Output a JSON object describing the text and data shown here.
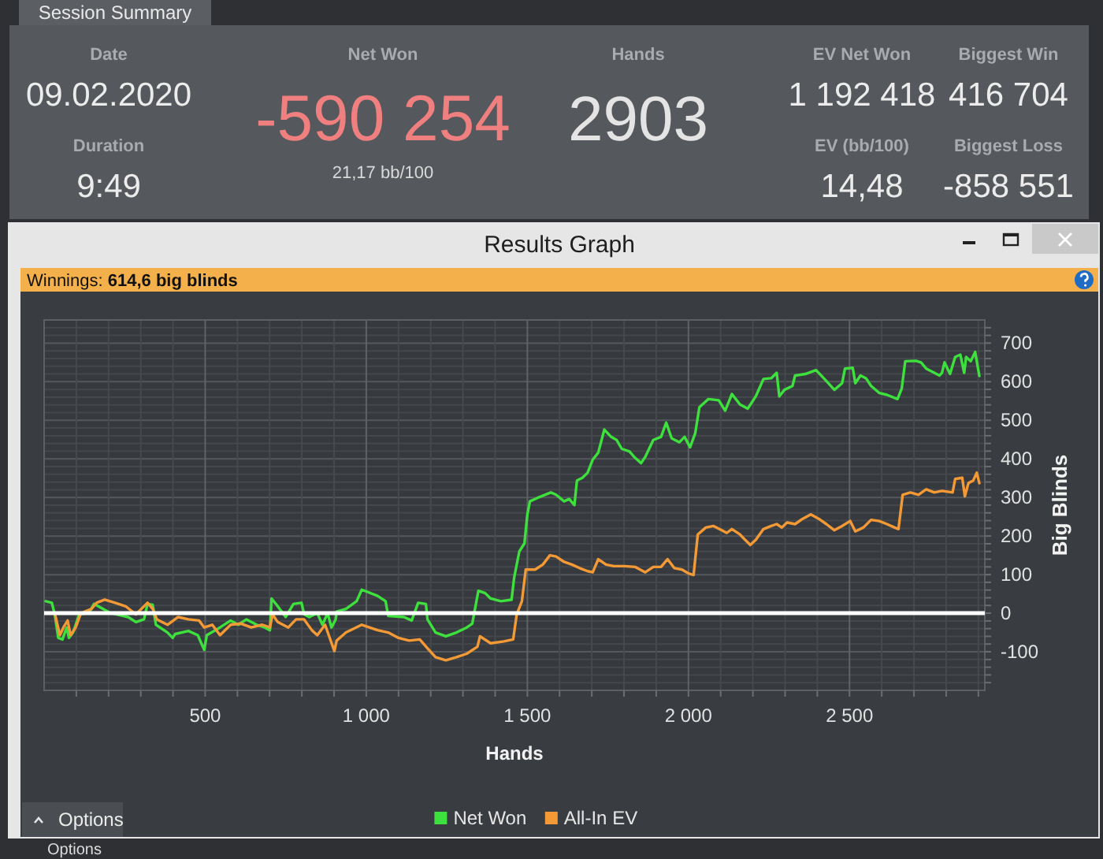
{
  "chart_data": [
    {
      "type": "other",
      "title": "Session Summary",
      "annotations": [
        "Date",
        "09.02.2020",
        "Duration",
        "9:49",
        "Net Won",
        "-590 254",
        "21,17 bb/100",
        "Hands",
        "2903",
        "EV Net Won",
        "1 192 418",
        "EV (bb/100)",
        "14,48",
        "Biggest Win",
        "416 704",
        "Biggest Loss",
        "-858 551"
      ]
    },
    {
      "type": "line",
      "title": "Results Graph",
      "annotations": [
        "Winnings: 614,6 big blinds",
        "Options",
        "Options"
      ],
      "xlabel": "Hands",
      "ylabel": "Big Blinds",
      "xlim": [
        0,
        2920
      ],
      "ylim": [
        -200,
        760
      ],
      "xticks": [
        {
          "value": 100,
          "label": null
        },
        {
          "value": 200,
          "label": null
        },
        {
          "value": 300,
          "label": null
        },
        {
          "value": 400,
          "label": null
        },
        500,
        {
          "value": 600,
          "label": null
        },
        {
          "value": 700,
          "label": null
        },
        {
          "value": 800,
          "label": null
        },
        {
          "value": 900,
          "label": null
        },
        {
          "value": 1000,
          "label": "1 000"
        },
        {
          "value": 1100,
          "label": null
        },
        {
          "value": 1200,
          "label": null
        },
        {
          "value": 1300,
          "label": null
        },
        {
          "value": 1400,
          "label": null
        },
        {
          "value": 1500,
          "label": "1 500"
        },
        {
          "value": 1600,
          "label": null
        },
        {
          "value": 1700,
          "label": null
        },
        {
          "value": 1800,
          "label": null
        },
        {
          "value": 1900,
          "label": null
        },
        {
          "value": 2000,
          "label": "2 000"
        },
        {
          "value": 2100,
          "label": null
        },
        {
          "value": 2200,
          "label": null
        },
        {
          "value": 2300,
          "label": null
        },
        {
          "value": 2400,
          "label": null
        },
        {
          "value": 2500,
          "label": "2 500"
        },
        {
          "value": 2600,
          "label": null
        },
        {
          "value": 2700,
          "label": null
        },
        {
          "value": 2800,
          "label": null
        },
        {
          "value": 2900,
          "label": null
        }
      ],
      "yticks": [
        {
          "value": -180,
          "label": null
        },
        {
          "value": -160,
          "label": null
        },
        {
          "value": -140,
          "label": null
        },
        {
          "value": -120,
          "label": null
        },
        -100,
        {
          "value": -80,
          "label": null
        },
        {
          "value": -60,
          "label": null
        },
        {
          "value": -40,
          "label": null
        },
        {
          "value": -20,
          "label": null
        },
        0,
        {
          "value": 20,
          "label": null
        },
        {
          "value": 40,
          "label": null
        },
        {
          "value": 60,
          "label": null
        },
        {
          "value": 80,
          "label": null
        },
        100,
        {
          "value": 120,
          "label": null
        },
        {
          "value": 140,
          "label": null
        },
        {
          "value": 160,
          "label": null
        },
        {
          "value": 180,
          "label": null
        },
        200,
        {
          "value": 220,
          "label": null
        },
        {
          "value": 240,
          "label": null
        },
        {
          "value": 260,
          "label": null
        },
        {
          "value": 280,
          "label": null
        },
        300,
        {
          "value": 320,
          "label": null
        },
        {
          "value": 340,
          "label": null
        },
        {
          "value": 360,
          "label": null
        },
        {
          "value": 380,
          "label": null
        },
        400,
        {
          "value": 420,
          "label": null
        },
        {
          "value": 440,
          "label": null
        },
        {
          "value": 460,
          "label": null
        },
        {
          "value": 480,
          "label": null
        },
        500,
        {
          "value": 520,
          "label": null
        },
        {
          "value": 540,
          "label": null
        },
        {
          "value": 560,
          "label": null
        },
        {
          "value": 580,
          "label": null
        },
        600,
        {
          "value": 620,
          "label": null
        },
        {
          "value": 640,
          "label": null
        },
        {
          "value": 660,
          "label": null
        },
        {
          "value": 680,
          "label": null
        },
        700,
        {
          "value": 720,
          "label": null
        },
        {
          "value": 740,
          "label": null
        }
      ],
      "grid": true,
      "legend": "bottom",
      "ref_lines": [
        {
          "axis": "y",
          "value": 0,
          "color": "#ffffff"
        }
      ],
      "series": [
        {
          "name": "Net Won",
          "color": "#3ee03e",
          "x": [
            5,
            24,
            33,
            44,
            57,
            70,
            77,
            90,
            109,
            139,
            155,
            204,
            261,
            285,
            310,
            321,
            337,
            347,
            383,
            399,
            407,
            448,
            477,
            497,
            505,
            546,
            579,
            603,
            628,
            660,
            685,
            701,
            706,
            725,
            750,
            774,
            799,
            807,
            823,
            848,
            864,
            880,
            892,
            905,
            908,
            937,
            970,
            986,
            1035,
            1060,
            1068,
            1117,
            1141,
            1161,
            1185,
            1190,
            1215,
            1247,
            1280,
            1312,
            1329,
            1348,
            1369,
            1386,
            1418,
            1451,
            1459,
            1475,
            1491,
            1500,
            1508,
            1532,
            1573,
            1589,
            1614,
            1630,
            1646,
            1654,
            1671,
            1687,
            1703,
            1720,
            1739,
            1760,
            1777,
            1793,
            1817,
            1834,
            1853,
            1866,
            1891,
            1915,
            1931,
            1948,
            1972,
            1988,
            2005,
            2021,
            2034,
            2062,
            2094,
            2114,
            2135,
            2160,
            2184,
            2209,
            2233,
            2257,
            2274,
            2282,
            2298,
            2323,
            2331,
            2363,
            2396,
            2420,
            2453,
            2477,
            2486,
            2510,
            2518,
            2534,
            2551,
            2567,
            2592,
            2616,
            2649,
            2662,
            2673,
            2706,
            2722,
            2738,
            2763,
            2779,
            2787,
            2795,
            2812,
            2828,
            2844,
            2856,
            2862,
            2876,
            2890,
            2903
          ],
          "values": [
            31,
            27,
            -3,
            -64,
            -68,
            -37,
            -64,
            -50,
            -3,
            1,
            24,
            1,
            -10,
            -23,
            -16,
            24,
            22,
            -30,
            -50,
            -64,
            -54,
            -46,
            -57,
            -95,
            -57,
            -37,
            -19,
            -30,
            -16,
            -30,
            -37,
            -44,
            38,
            18,
            -10,
            24,
            27,
            -3,
            -10,
            0,
            -30,
            0,
            -37,
            -16,
            4,
            11,
            31,
            61,
            45,
            31,
            -7,
            -10,
            -19,
            27,
            24,
            -16,
            -50,
            -60,
            -50,
            -37,
            -27,
            58,
            52,
            38,
            31,
            35,
            92,
            160,
            181,
            256,
            290,
            299,
            313,
            307,
            290,
            296,
            280,
            344,
            351,
            364,
            398,
            416,
            476,
            457,
            449,
            426,
            419,
            403,
            389,
            405,
            449,
            457,
            494,
            453,
            443,
            457,
            430,
            466,
            534,
            555,
            552,
            525,
            568,
            541,
            530,
            562,
            607,
            609,
            623,
            562,
            579,
            589,
            616,
            620,
            630,
            609,
            579,
            596,
            634,
            636,
            596,
            616,
            609,
            589,
            571,
            566,
            555,
            582,
            653,
            654,
            650,
            634,
            623,
            616,
            623,
            650,
            620,
            664,
            670,
            623,
            664,
            653,
            677,
            615
          ]
        },
        {
          "name": "All-In EV",
          "color": "#f39a36",
          "x": [
            5,
            33,
            49,
            60,
            73,
            82,
            98,
            114,
            147,
            163,
            188,
            220,
            253,
            285,
            321,
            337,
            350,
            383,
            416,
            448,
            481,
            497,
            522,
            546,
            579,
            611,
            643,
            677,
            701,
            709,
            725,
            758,
            782,
            807,
            831,
            848,
            872,
            901,
            908,
            937,
            986,
            1035,
            1068,
            1100,
            1133,
            1166,
            1190,
            1215,
            1247,
            1280,
            1312,
            1345,
            1353,
            1386,
            1427,
            1456,
            1467,
            1483,
            1495,
            1524,
            1548,
            1570,
            1589,
            1614,
            1638,
            1662,
            1687,
            1703,
            1720,
            1744,
            1768,
            1801,
            1834,
            1866,
            1891,
            1915,
            1935,
            1956,
            1980,
            2000,
            2016,
            2029,
            2054,
            2078,
            2103,
            2119,
            2135,
            2160,
            2176,
            2192,
            2209,
            2233,
            2257,
            2274,
            2290,
            2306,
            2331,
            2355,
            2380,
            2404,
            2428,
            2453,
            2477,
            2502,
            2518,
            2543,
            2567,
            2592,
            2616,
            2640,
            2652,
            2665,
            2689,
            2714,
            2738,
            2763,
            2787,
            2820,
            2828,
            2850,
            2858,
            2869,
            2884,
            2895,
            2903
          ],
          "values": [
            0,
            0,
            -57,
            -37,
            -19,
            -57,
            -37,
            0,
            11,
            27,
            35,
            27,
            18,
            -3,
            27,
            11,
            -16,
            -30,
            -10,
            -16,
            -19,
            -37,
            -30,
            -57,
            -30,
            -27,
            -37,
            -30,
            -37,
            -3,
            -23,
            -37,
            -16,
            -16,
            -44,
            -57,
            -30,
            -98,
            -71,
            -50,
            -30,
            -44,
            -50,
            -64,
            -71,
            -68,
            -91,
            -114,
            -122,
            -114,
            -105,
            -87,
            -60,
            -78,
            -73,
            -68,
            -3,
            31,
            113,
            113,
            126,
            150,
            147,
            133,
            126,
            117,
            109,
            106,
            140,
            126,
            122,
            122,
            120,
            106,
            120,
            120,
            140,
            117,
            113,
            103,
            99,
            204,
            222,
            226,
            215,
            208,
            218,
            204,
            190,
            177,
            190,
            218,
            226,
            231,
            222,
            235,
            231,
            245,
            256,
            245,
            231,
            215,
            226,
            239,
            212,
            222,
            242,
            239,
            231,
            222,
            218,
            307,
            313,
            307,
            321,
            313,
            317,
            313,
            348,
            351,
            303,
            337,
            344,
            364,
            337
          ]
        }
      ]
    }
  ]
}
